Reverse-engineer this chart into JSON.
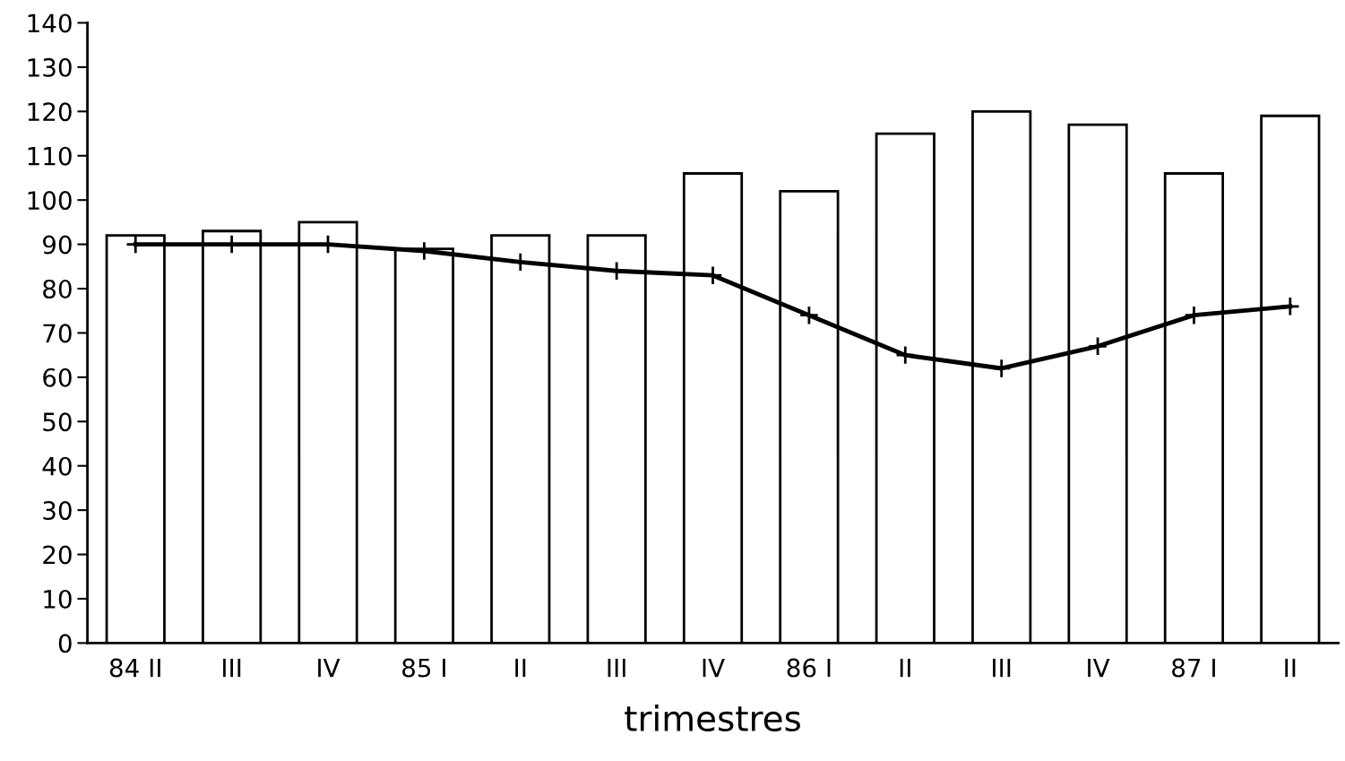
{
  "chart_data": {
    "type": "bar",
    "xlabel": "trimestres",
    "categories": [
      "84 II",
      "III",
      "IV",
      "85 I",
      "II",
      "III",
      "IV",
      "86 I",
      "II",
      "III",
      "IV",
      "87 I",
      "II"
    ],
    "series": [
      {
        "color": "#ffffff",
        "values": [
          92,
          93,
          95,
          89,
          92,
          92,
          106,
          102,
          115,
          120,
          117,
          106,
          119
        ]
      },
      {
        "type": "line",
        "color": "#000000",
        "marker": "cross",
        "values": [
          90,
          90,
          90,
          88.5,
          86,
          84,
          83,
          74,
          65,
          62,
          67,
          74,
          76
        ]
      }
    ],
    "ylim": [
      0,
      140
    ],
    "yticks": [
      0,
      10,
      20,
      30,
      40,
      50,
      60,
      70,
      80,
      90,
      100,
      110,
      120,
      130,
      140
    ],
    "grid": false,
    "legend": false
  }
}
